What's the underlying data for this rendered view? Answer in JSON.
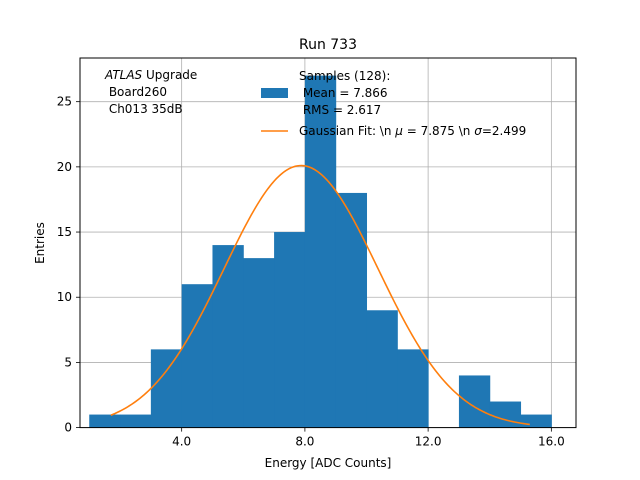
{
  "chart_data": {
    "type": "bar",
    "title": "Run 733",
    "xlabel": "Energy [ADC Counts]",
    "ylabel": "Entries",
    "xlim": [
      0.7,
      16.8
    ],
    "ylim": [
      0,
      28.35
    ],
    "grid": true,
    "bin_edges": [
      1,
      2,
      3,
      4,
      5,
      6,
      7,
      8,
      9,
      10,
      11,
      12,
      13,
      14,
      15,
      16
    ],
    "counts": [
      1,
      1,
      6,
      11,
      14,
      13,
      15,
      27,
      18,
      9,
      6,
      0,
      4,
      2,
      1
    ],
    "bar_color": "#1f77b4",
    "fit_color": "#ff7f0e",
    "grid_color": "#b0b0b0",
    "gaussian_fit": {
      "mu": 7.875,
      "sigma": 2.499,
      "amplitude": 20.1,
      "x_range": [
        1.7,
        15.3
      ]
    },
    "x_ticks": [
      4,
      8,
      12,
      16
    ],
    "x_tick_labels": [
      "4.0",
      "8.0",
      "12.0",
      "16.0"
    ],
    "y_ticks": [
      0,
      5,
      10,
      15,
      20,
      25
    ],
    "y_tick_labels": [
      "0",
      "5",
      "10",
      "15",
      "20",
      "25"
    ],
    "annotation": {
      "atlas_word": "ATLAS",
      "atlas_rest": " Upgrade",
      "line2": " Board260",
      "line3": " Ch013 35dB"
    },
    "legend": {
      "position": "top-center",
      "hist_label_lines": [
        "Samples (128):",
        " Mean = 7.866",
        " RMS = 2.617"
      ],
      "fit_label_prefix": "Gaussian Fit: \\n ",
      "fit_label_mu_sym": "μ",
      "fit_label_mid": " = 7.875 \\n ",
      "fit_label_sigma_sym": "σ",
      "fit_label_end": "=2.499"
    }
  }
}
